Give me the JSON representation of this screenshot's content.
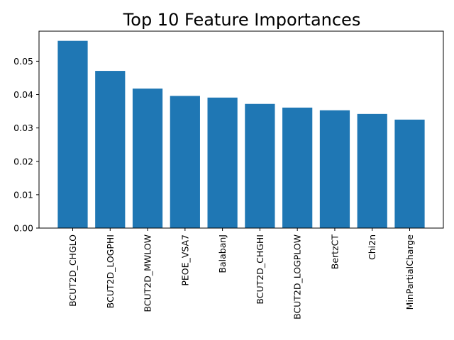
{
  "chart_data": {
    "type": "bar",
    "title": "Top 10 Feature Importances",
    "xlabel": "",
    "ylabel": "",
    "categories": [
      "BCUT2D_CHGLO",
      "BCUT2D_LOGPHI",
      "BCUT2D_MWLOW",
      "PEOE_VSA7",
      "BalabanJ",
      "BCUT2D_CHGHI",
      "BCUT2D_LOGPLOW",
      "BertzCT",
      "Chi2n",
      "MinPartialCharge"
    ],
    "values": [
      0.0561,
      0.0471,
      0.0418,
      0.0396,
      0.0391,
      0.0372,
      0.0361,
      0.0353,
      0.0342,
      0.0325
    ],
    "ylim": [
      0,
      0.059
    ],
    "yticks": [
      0.0,
      0.01,
      0.02,
      0.03,
      0.04,
      0.05
    ],
    "ytick_labels": [
      "0.00",
      "0.01",
      "0.02",
      "0.03",
      "0.04",
      "0.05"
    ],
    "bar_color": "#1f77b4",
    "grid": false,
    "legend": "none"
  }
}
